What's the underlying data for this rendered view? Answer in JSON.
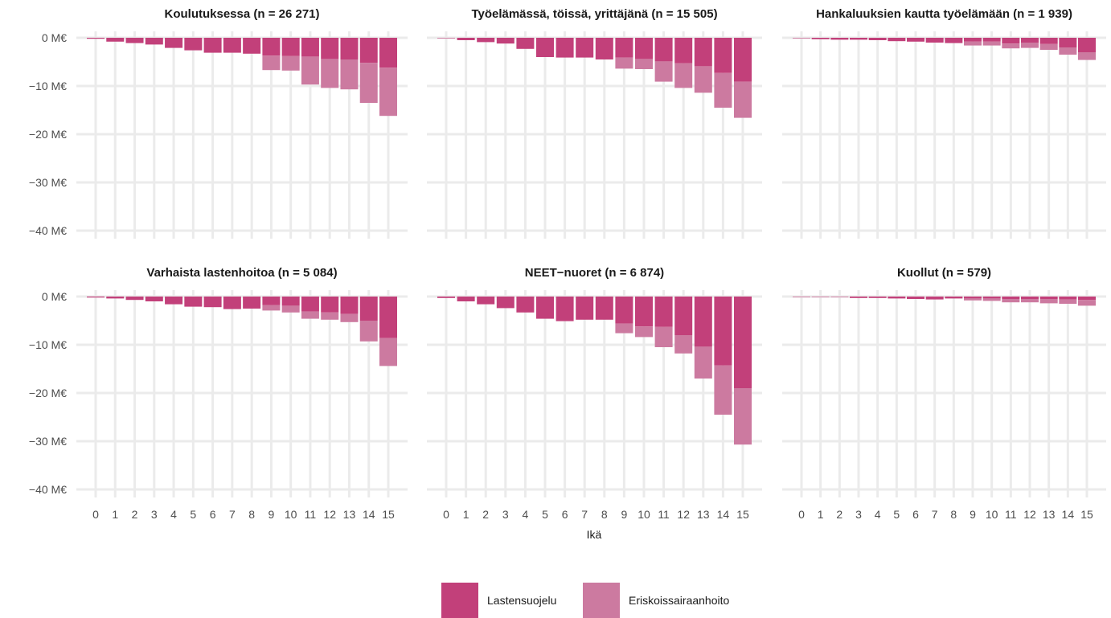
{
  "chart_data": {
    "type": "bar",
    "stacked": true,
    "layout": "facet-grid-2x3",
    "xlabel": "Ikä",
    "ylabel": "",
    "unit": "M€",
    "ylim": [
      -40,
      0
    ],
    "yticks": [
      0,
      -10,
      -20,
      -30,
      -40
    ],
    "ytick_labels": [
      "0 M€",
      "−10 M€",
      "−20 M€",
      "−30 M€",
      "−40 M€"
    ],
    "categories": [
      "0",
      "1",
      "2",
      "3",
      "4",
      "5",
      "6",
      "7",
      "8",
      "9",
      "10",
      "11",
      "12",
      "13",
      "14",
      "15"
    ],
    "grid": true,
    "legend": {
      "position": "bottom",
      "items": [
        {
          "name": "Lastensuojelu",
          "color": "#c2407a"
        },
        {
          "name": "Eriskoissairaanhoito",
          "color": "#cc7aa0"
        }
      ]
    },
    "facets": [
      {
        "title": "Koulutuksessa (n = 26 271)",
        "series": [
          {
            "name": "Lastensuojelu",
            "values": [
              -0.2,
              -0.8,
              -1.1,
              -1.4,
              -2.1,
              -2.6,
              -3.1,
              -3.1,
              -3.3,
              -3.7,
              -3.8,
              -3.9,
              -4.4,
              -4.5,
              -5.2,
              -6.2
            ]
          },
          {
            "name": "Eriskoissairaanhoito",
            "values": [
              0,
              0,
              0,
              0,
              0,
              0,
              0,
              0,
              0,
              -3.0,
              -3.0,
              -5.8,
              -6.0,
              -6.2,
              -8.3,
              -10.0
            ]
          }
        ]
      },
      {
        "title": "Työelämässä, töissä, yrittäjänä (n = 15 505)",
        "series": [
          {
            "name": "Lastensuojelu",
            "values": [
              -0.1,
              -0.5,
              -0.9,
              -1.2,
              -2.3,
              -4.0,
              -4.1,
              -4.1,
              -4.5,
              -4.1,
              -4.4,
              -4.9,
              -5.3,
              -5.9,
              -7.3,
              -9.1
            ]
          },
          {
            "name": "Eriskoissairaanhoito",
            "values": [
              0,
              0,
              0,
              0,
              0,
              0,
              0,
              0,
              0,
              -2.3,
              -2.1,
              -4.2,
              -5.1,
              -5.5,
              -7.2,
              -7.5
            ]
          }
        ]
      },
      {
        "title": "Hankaluuksien kautta työelämään (n = 1 939)",
        "series": [
          {
            "name": "Lastensuojelu",
            "values": [
              -0.1,
              -0.3,
              -0.4,
              -0.4,
              -0.5,
              -0.7,
              -0.8,
              -1.0,
              -1.1,
              -0.8,
              -0.8,
              -1.2,
              -1.0,
              -1.3,
              -2.0,
              -3.0
            ]
          },
          {
            "name": "Eriskoissairaanhoito",
            "values": [
              0,
              0,
              0,
              0,
              0,
              0,
              0,
              0,
              0,
              -0.8,
              -0.8,
              -1.0,
              -1.1,
              -1.2,
              -1.5,
              -1.6
            ]
          }
        ]
      },
      {
        "title": "Varhaista lastenhoitoa (n = 5 084)",
        "series": [
          {
            "name": "Lastensuojelu",
            "values": [
              -0.2,
              -0.4,
              -0.7,
              -1.0,
              -1.6,
              -2.1,
              -2.2,
              -2.6,
              -2.5,
              -1.8,
              -1.9,
              -3.1,
              -3.3,
              -3.6,
              -5.0,
              -8.6
            ]
          },
          {
            "name": "Eriskoissairaanhoito",
            "values": [
              0,
              0,
              0,
              0,
              0,
              0,
              0,
              0,
              0,
              -1.1,
              -1.4,
              -1.5,
              -1.5,
              -1.7,
              -4.3,
              -5.8
            ]
          }
        ]
      },
      {
        "title": "NEET−nuoret (n = 6 874)",
        "series": [
          {
            "name": "Lastensuojelu",
            "values": [
              -0.3,
              -1.0,
              -1.6,
              -2.4,
              -3.3,
              -4.6,
              -5.1,
              -4.8,
              -4.8,
              -5.6,
              -6.2,
              -6.3,
              -8.0,
              -10.4,
              -14.3,
              -19.0
            ]
          },
          {
            "name": "Eriskoissairaanhoito",
            "values": [
              0,
              0,
              0,
              0,
              0,
              0,
              0,
              0,
              0,
              -2.0,
              -2.2,
              -4.2,
              -3.8,
              -6.6,
              -10.2,
              -11.7
            ]
          }
        ]
      },
      {
        "title": "Kuollut (n = 579)",
        "series": [
          {
            "name": "Lastensuojelu",
            "values": [
              -0.1,
              -0.1,
              -0.1,
              -0.3,
              -0.3,
              -0.4,
              -0.5,
              -0.6,
              -0.4,
              -0.4,
              -0.4,
              -0.5,
              -0.5,
              -0.5,
              -0.6,
              -0.7
            ]
          },
          {
            "name": "Eriskoissairaanhoito",
            "values": [
              0,
              0,
              0,
              0,
              0,
              0,
              0,
              0,
              0,
              -0.4,
              -0.5,
              -0.7,
              -0.7,
              -0.9,
              -0.9,
              -1.2
            ]
          }
        ]
      }
    ]
  }
}
